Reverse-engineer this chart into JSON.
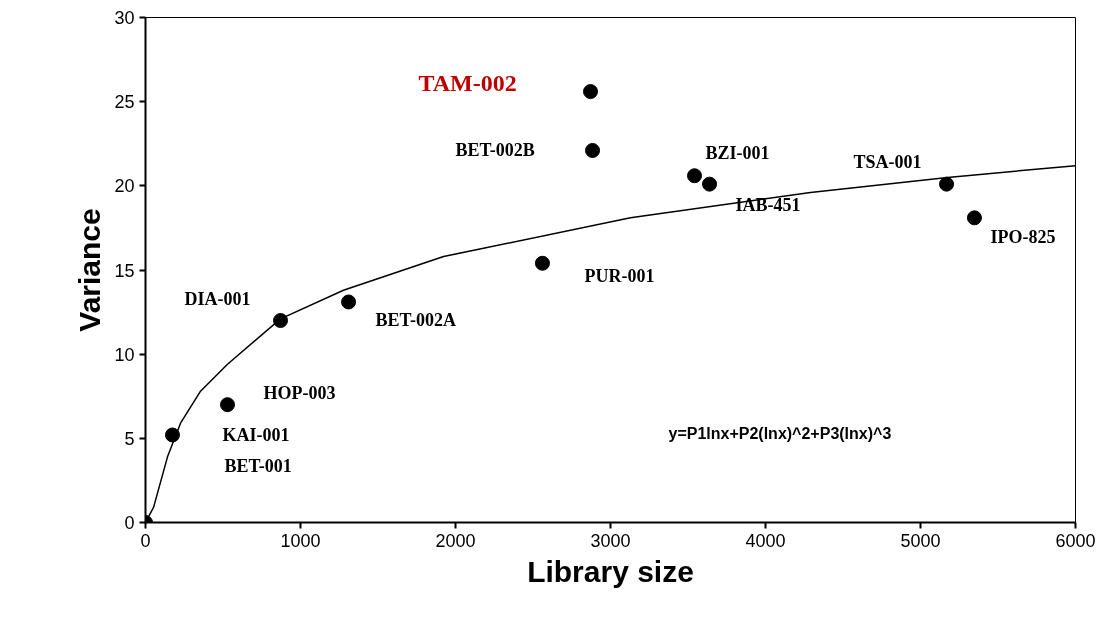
{
  "chart_data": {
    "type": "scatter",
    "xlabel": "Library size",
    "ylabel": "Variance",
    "xlim": [
      0,
      6000
    ],
    "ylim": [
      0,
      30
    ],
    "xticks": [
      0,
      1000,
      2000,
      3000,
      4000,
      5000,
      6000
    ],
    "yticks": [
      0,
      5,
      10,
      15,
      20,
      25,
      30
    ],
    "grid": false,
    "marker": "circle",
    "series": [
      {
        "color": "#000000",
        "x": [
          0,
          174,
          529,
          871,
          1310,
          2561,
          2871,
          2884,
          3542,
          3639,
          5168,
          5348
        ],
        "values": [
          0,
          5.2,
          7.0,
          12.0,
          13.1,
          15.4,
          25.6,
          22.1,
          20.6,
          20.1,
          20.1,
          18.1
        ]
      },
      {
        "type": "line",
        "color": "#000000",
        "marker": "none",
        "line_style": "solid",
        "x": [
          0,
          52,
          142,
          226,
          355,
          529,
          871,
          1277,
          1923,
          3129,
          4290,
          5174,
          6000
        ],
        "values": [
          0,
          0.9,
          3.9,
          5.9,
          7.8,
          9.4,
          12.1,
          13.8,
          15.8,
          18.1,
          19.6,
          20.5,
          21.2
        ]
      }
    ],
    "annotations": [
      {
        "text": "BZI-001",
        "x": 3542,
        "y": 20.6
      },
      {
        "text": "IAB-451",
        "x": 3639,
        "y": 20.1
      },
      {
        "text": "TSA-001",
        "x": 5168,
        "y": 20.1
      },
      {
        "text": "IPO-825",
        "x": 5348,
        "y": 18.1
      },
      {
        "text": "PUR-001",
        "x": 2561,
        "y": 15.4
      },
      {
        "text": "DIA-001",
        "x": 871,
        "y": 12.0
      },
      {
        "text": "BET-002A",
        "x": 1310,
        "y": 13.1
      },
      {
        "text": "HOP-003",
        "x": 529,
        "y": 7.0
      },
      {
        "text": "KAI-001",
        "x": 529,
        "y": 7.0
      },
      "TAM-002",
      "BET-002B",
      "BET-001",
      "y=P1lnx+P2(lnx)^2+P3(lnx)^3"
    ]
  }
}
